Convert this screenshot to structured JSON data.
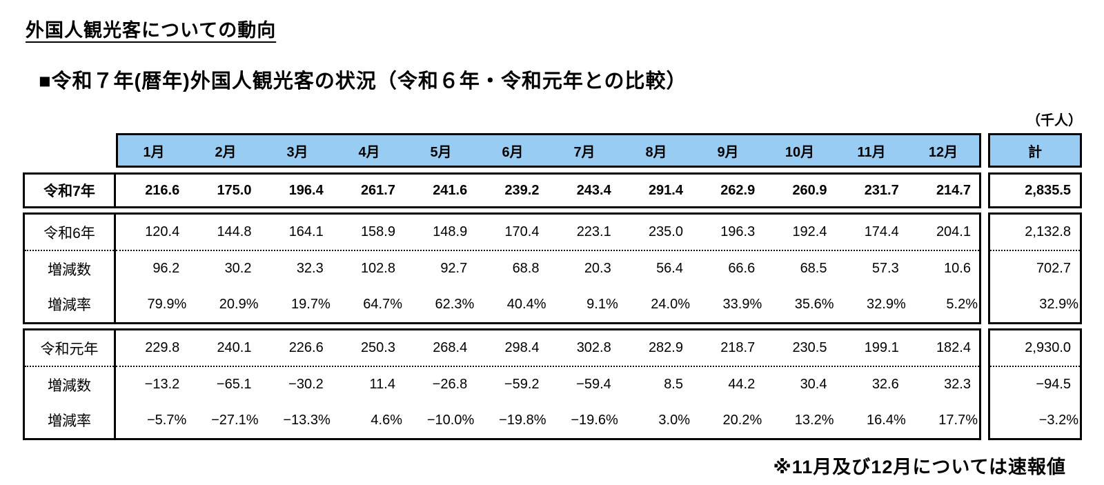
{
  "page": {
    "title": "外国人観光客についての動向",
    "subtitle": "■令和７年(暦年)外国人観光客の状況（令和６年・令和元年との比較）",
    "unit_note": "（千人）",
    "footnote": "※11月及び12月については速報値"
  },
  "colors": {
    "header_bg": "#99CCF2",
    "border": "#000000",
    "text": "#000000"
  },
  "chart_data": {
    "type": "table",
    "title": "令和7年(暦年)外国人観光客の状況（令和6年・令和元年との比較）",
    "unit": "千人",
    "months": [
      "1月",
      "2月",
      "3月",
      "4月",
      "5月",
      "6月",
      "7月",
      "8月",
      "9月",
      "10月",
      "11月",
      "12月"
    ],
    "total_label": "計",
    "reiwa7": {
      "label": "令和7年",
      "values": [
        "216.6",
        "175.0",
        "196.4",
        "261.7",
        "241.6",
        "239.2",
        "243.4",
        "291.4",
        "262.9",
        "260.9",
        "231.7",
        "214.7"
      ],
      "total": "2,835.5"
    },
    "groups": [
      {
        "rows": [
          {
            "label": "令和6年",
            "percent": false,
            "divider": "none",
            "values": [
              "120.4",
              "144.8",
              "164.1",
              "158.9",
              "148.9",
              "170.4",
              "223.1",
              "235.0",
              "196.3",
              "192.4",
              "174.4",
              "204.1"
            ],
            "total": "2,132.8"
          },
          {
            "label": "増減数",
            "percent": false,
            "divider": "dotted",
            "values": [
              "96.2",
              "30.2",
              "32.3",
              "102.8",
              "92.7",
              "68.8",
              "20.3",
              "56.4",
              "66.6",
              "68.5",
              "57.3",
              "10.6"
            ],
            "total": "702.7"
          },
          {
            "label": "増減率",
            "percent": true,
            "divider": "none",
            "values": [
              "79.9%",
              "20.9%",
              "19.7%",
              "64.7%",
              "62.3%",
              "40.4%",
              "9.1%",
              "24.0%",
              "33.9%",
              "35.6%",
              "32.9%",
              "5.2%"
            ],
            "total": "32.9%"
          }
        ]
      },
      {
        "rows": [
          {
            "label": "令和元年",
            "percent": false,
            "divider": "none",
            "values": [
              "229.8",
              "240.1",
              "226.6",
              "250.3",
              "268.4",
              "298.4",
              "302.8",
              "282.9",
              "218.7",
              "230.5",
              "199.1",
              "182.4"
            ],
            "total": "2,930.0"
          },
          {
            "label": "増減数",
            "percent": false,
            "divider": "dotted",
            "values": [
              "−13.2",
              "−65.1",
              "−30.2",
              "11.4",
              "−26.8",
              "−59.2",
              "−59.4",
              "8.5",
              "44.2",
              "30.4",
              "32.6",
              "32.3"
            ],
            "total": "−94.5"
          },
          {
            "label": "増減率",
            "percent": true,
            "divider": "none",
            "values": [
              "−5.7%",
              "−27.1%",
              "−13.3%",
              "4.6%",
              "−10.0%",
              "−19.8%",
              "−19.6%",
              "3.0%",
              "20.2%",
              "13.2%",
              "16.4%",
              "17.7%"
            ],
            "total": "−3.2%"
          }
        ]
      }
    ]
  }
}
